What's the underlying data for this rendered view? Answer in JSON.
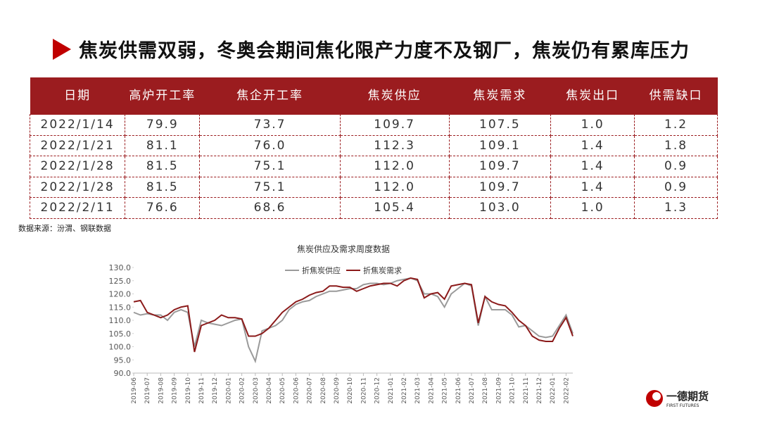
{
  "header": {
    "title": "焦炭供需双弱，冬奥会期间焦化限产力度不及钢厂，焦炭仍有累库压力"
  },
  "table": {
    "columns": [
      "日期",
      "高炉开工率",
      "焦企开工率",
      "焦炭供应",
      "焦炭需求",
      "焦炭出口",
      "供需缺口"
    ],
    "rows": [
      [
        "2022/1/14",
        "79.9",
        "73.7",
        "109.7",
        "107.5",
        "1.0",
        "1.2"
      ],
      [
        "2022/1/21",
        "81.1",
        "76.0",
        "112.3",
        "109.1",
        "1.4",
        "1.8"
      ],
      [
        "2022/1/28",
        "81.5",
        "75.1",
        "112.0",
        "109.7",
        "1.4",
        "0.9"
      ],
      [
        "2022/1/28",
        "81.5",
        "75.1",
        "112.0",
        "109.7",
        "1.4",
        "0.9"
      ],
      [
        "2022/2/11",
        "76.6",
        "68.6",
        "105.4",
        "103.0",
        "1.0",
        "1.3"
      ]
    ]
  },
  "source": "数据来源：汾渭、钢联数据",
  "logo": {
    "name": "一德期货",
    "subtitle": "FIRST FUTURES"
  },
  "chart_data": {
    "type": "line",
    "title": "焦炭供应及需求周度数据",
    "categories": [
      "2019-06",
      null,
      "2019-07",
      null,
      "2019-08",
      null,
      "2019-09",
      null,
      "2019-10",
      null,
      "2019-11",
      null,
      "2019-12",
      null,
      "2020-01",
      null,
      "2020-02",
      null,
      "2020-03",
      null,
      "2020-04",
      null,
      "2020-05",
      null,
      "2020-06",
      null,
      "2020-07",
      null,
      "2020-08",
      null,
      "2020-09",
      null,
      "2020-10",
      null,
      "2020-11",
      null,
      "2020-12",
      null,
      "2021-01",
      null,
      "2021-02",
      null,
      "2021-03",
      null,
      "2021-04",
      null,
      "2021-05",
      null,
      "2021-06",
      null,
      "2021-07",
      null,
      "2021-08",
      null,
      "2021-09",
      null,
      "2021-10",
      null,
      "2021-11",
      null,
      "2021-12",
      null,
      "2022-01",
      null,
      "2022-02",
      null
    ],
    "series": [
      {
        "name": "折焦炭供应",
        "color": "#9a9a9a",
        "values": [
          113,
          112,
          112.5,
          112,
          112,
          110,
          113,
          114,
          113,
          100,
          110,
          109,
          108.5,
          108,
          109,
          110,
          110.5,
          100,
          94.5,
          106,
          107,
          108,
          110,
          114,
          116,
          117,
          117.5,
          119,
          120,
          121,
          121,
          121.5,
          122,
          122,
          123.5,
          124,
          124,
          123.5,
          124,
          125,
          125.5,
          126,
          125,
          120,
          120,
          119,
          115,
          120,
          122,
          124,
          123,
          108,
          119,
          114,
          114,
          114,
          112,
          107.5,
          108,
          106,
          104,
          103.5,
          104,
          108,
          112,
          105
        ]
      },
      {
        "name": "折焦炭需求",
        "color": "#8b1a1a",
        "values": [
          117,
          117.5,
          113,
          112,
          111,
          112,
          114,
          115,
          115.5,
          98,
          108,
          109,
          110,
          112,
          111,
          111,
          110.5,
          104,
          104,
          105,
          107,
          110,
          113,
          115,
          117,
          118,
          119.5,
          120.5,
          121,
          123,
          123,
          122.5,
          122.5,
          121,
          122,
          123,
          123.5,
          124,
          124,
          123,
          125,
          126,
          125.5,
          118.5,
          120,
          120.5,
          118,
          123,
          123.5,
          124,
          123.5,
          109,
          119,
          117,
          116,
          115.5,
          113,
          110,
          108,
          104,
          102.5,
          102,
          102,
          107,
          111,
          104
        ]
      }
    ],
    "ylim": [
      90,
      130
    ],
    "yticks": [
      {
        "value": 90,
        "label": "90.0"
      },
      {
        "value": 95,
        "label": "95.0"
      },
      {
        "value": 100,
        "label": "100.0"
      },
      {
        "value": 105,
        "label": "105.0"
      },
      {
        "value": 110,
        "label": "110.0"
      },
      {
        "value": 115,
        "label": "115.0"
      },
      {
        "value": 120,
        "label": "120.0"
      },
      {
        "value": 125,
        "label": "125.0"
      },
      {
        "value": 130,
        "label": "130.0"
      }
    ],
    "grid": false,
    "legend": "top"
  }
}
